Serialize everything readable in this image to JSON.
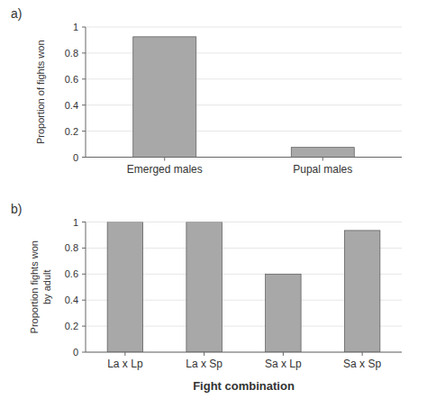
{
  "chart_data": [
    {
      "type": "bar",
      "title": "a)",
      "categories": [
        "Emerged males",
        "Pupal males"
      ],
      "values": [
        0.925,
        0.075
      ],
      "ylabel": "Proportion of fights won",
      "ylim": [
        0,
        1
      ],
      "yticks": [
        0,
        0.2,
        0.4,
        0.6,
        0.8,
        1
      ],
      "color": "#a8a8a8"
    },
    {
      "type": "bar",
      "title": "b)",
      "categories": [
        "La x Lp",
        "La x Sp",
        "Sa x Lp",
        "Sa x Sp"
      ],
      "values": [
        1.0,
        1.0,
        0.6,
        0.935
      ],
      "ylabel": "Proportion fights won\nby adult",
      "xlabel": "Fight combination",
      "ylim": [
        0,
        1
      ],
      "yticks": [
        0,
        0.2,
        0.4,
        0.6,
        0.8,
        1
      ],
      "color": "#a8a8a8"
    }
  ]
}
